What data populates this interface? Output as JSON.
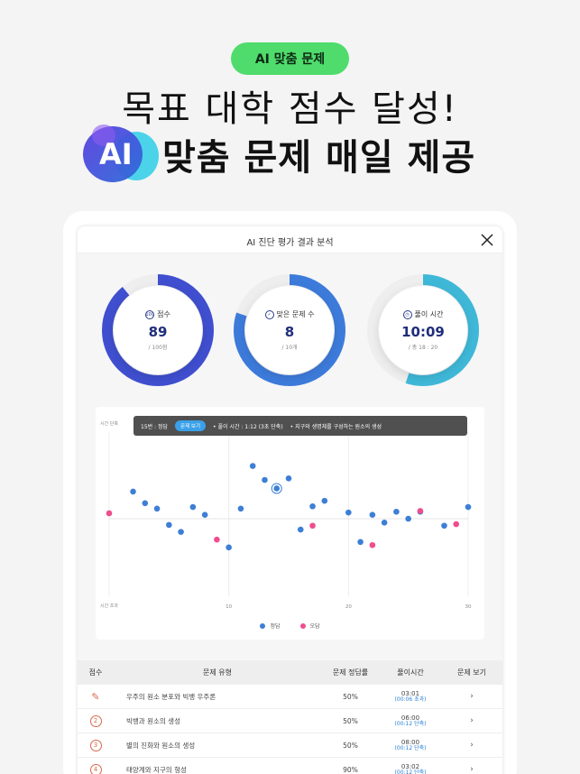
{
  "promo": {
    "badge": "AI 맞춤 문제",
    "headline_line1": "목표 대학 점수 달성!",
    "headline_line2": "맞춤 문제 매일 제공",
    "logo_text": "AI"
  },
  "modal": {
    "title": "AI 진단 평가 결과 분석",
    "close_icon": "close-icon"
  },
  "stats": [
    {
      "label": "점수",
      "icon": "score-100-icon",
      "icon_text": "100",
      "value": "89",
      "sub": "/ 100점",
      "progress": 0.89,
      "color": "#3f4fcf"
    },
    {
      "label": "맞은 문제 수",
      "icon": "check-circle-icon",
      "icon_text": "✓",
      "value": "8",
      "sub": "/ 10개",
      "progress": 0.8,
      "color": "#3d7bdb"
    },
    {
      "label": "풀이 시간",
      "icon": "clock-icon",
      "icon_text": "◷",
      "value": "10:09",
      "sub": "/ 총 18 : 20",
      "progress": 0.55,
      "color": "#3fb8d8"
    }
  ],
  "tooltip": {
    "question": "15번 : 정답",
    "button": "문제 보기",
    "time": "풀이 시간 : 1:12 (3초 단축)",
    "topic": "지구와 생명체를 구성하는 원소의 생성"
  },
  "chart_data": {
    "type": "scatter",
    "y_top_label": "시간 단축",
    "y_bottom_label": "시간 초과",
    "x_ticks": [
      "10",
      "20",
      "30"
    ],
    "xlim": [
      0,
      30
    ],
    "ylim": [
      -100,
      100
    ],
    "series": [
      {
        "name": "정답",
        "color": "#3d7fd6",
        "points": [
          [
            2,
            35
          ],
          [
            3,
            20
          ],
          [
            4,
            13
          ],
          [
            5,
            -8
          ],
          [
            6,
            -17
          ],
          [
            7,
            15
          ],
          [
            8,
            5
          ],
          [
            10,
            -37
          ],
          [
            11,
            13
          ],
          [
            12,
            68
          ],
          [
            13,
            50
          ],
          [
            14,
            39
          ],
          [
            15,
            52
          ],
          [
            16,
            -14
          ],
          [
            17,
            16
          ],
          [
            18,
            23
          ],
          [
            20,
            8
          ],
          [
            21,
            -30
          ],
          [
            22,
            5
          ],
          [
            23,
            -5
          ],
          [
            24,
            9
          ],
          [
            25,
            0
          ],
          [
            26,
            9
          ],
          [
            28,
            -9
          ],
          [
            30,
            15
          ]
        ]
      },
      {
        "name": "오답",
        "color": "#ee4d8e",
        "points": [
          [
            0,
            7
          ],
          [
            9,
            -27
          ],
          [
            17,
            -9
          ],
          [
            22,
            -34
          ],
          [
            26,
            10
          ],
          [
            29,
            -7
          ]
        ]
      }
    ],
    "highlight_point": [
      14,
      39
    ]
  },
  "table": {
    "headers": [
      "점수",
      "문제 유형",
      "문제 정답률",
      "풀이시간",
      "문제 보기"
    ],
    "rows": [
      {
        "num": "1",
        "type": "우주의 원소 분포와 빅뱅 우주론",
        "rate": "50%",
        "time": "03:01",
        "diff": "(00:06 초과)"
      },
      {
        "num": "2",
        "type": "빅뱅과 원소의 생성",
        "rate": "50%",
        "time": "06:00",
        "diff": "(00:12 단축)"
      },
      {
        "num": "3",
        "type": "별의 진화와 원소의 생성",
        "rate": "50%",
        "time": "08:00",
        "diff": "(00:12 단축)"
      },
      {
        "num": "4",
        "type": "태양계와 지구의 형성",
        "rate": "90%",
        "time": "03:02",
        "diff": "(00:12 단축)"
      }
    ],
    "view_icon": "chevron-right-icon"
  }
}
